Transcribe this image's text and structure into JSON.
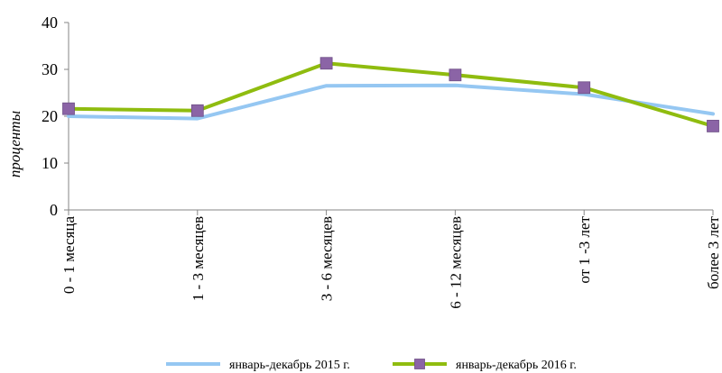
{
  "chart_data": {
    "type": "line",
    "title": "",
    "xlabel": "",
    "ylabel": "проценты",
    "ylim": [
      0,
      40
    ],
    "yticks": [
      "0",
      "10",
      "20",
      "30",
      "40"
    ],
    "categories": [
      "0 - 1 месяца",
      "1 - 3 месяцев",
      "3 - 6 месяцев",
      "6 - 12 месяцев",
      "от 1 -3 лет",
      "более 3 лет"
    ],
    "series": [
      {
        "name": "январь-декабрь 2015 г.",
        "values": [
          20.0,
          19.5,
          26.5,
          26.6,
          24.7,
          20.5
        ],
        "color": "#95c7f2",
        "marker": "none"
      },
      {
        "name": "январь-декабрь 2016 г.",
        "values": [
          21.6,
          21.2,
          31.3,
          28.8,
          26.1,
          17.9
        ],
        "color": "#8fbc0f",
        "marker": "square",
        "marker_color": "#8b64a6"
      }
    ],
    "grid": false,
    "legend": "bottom"
  }
}
